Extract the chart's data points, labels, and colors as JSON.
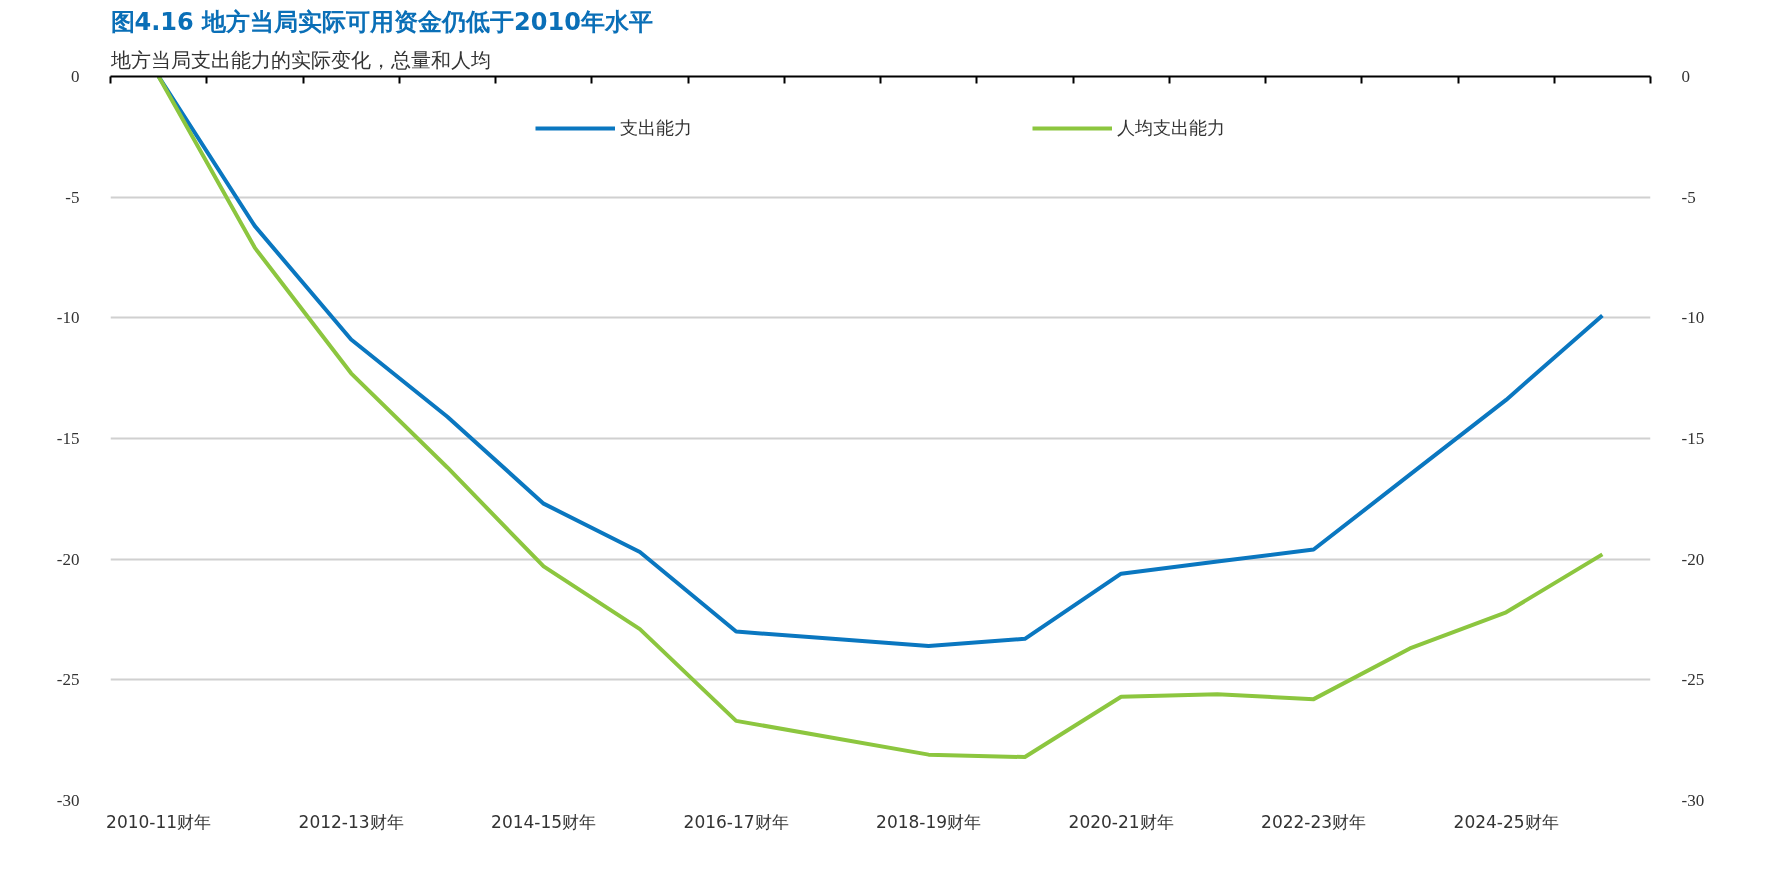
{
  "chart_data": {
    "type": "line",
    "title": "图4.16 地方当局实际可用资金仍低于2010年水平",
    "subtitle": "地方当局支出能力的实际变化，总量和人均",
    "categories": [
      "2010-11财年",
      null,
      "2012-13财年",
      null,
      "2014-15财年",
      null,
      "2016-17财年",
      null,
      "2018-19财年",
      null,
      "2020-21财年",
      null,
      "2022-23财年",
      null,
      "2024-25财年",
      null
    ],
    "series": [
      {
        "name": "支出能力",
        "color": "#0a77c0",
        "values": [
          0,
          -6.2,
          -10.9,
          -14.1,
          -17.7,
          -19.7,
          -23.0,
          -23.3,
          -23.6,
          -23.3,
          -20.6,
          -20.1,
          -19.6,
          -16.5,
          -13.4,
          -9.9
        ]
      },
      {
        "name": "人均支出能力",
        "color": "#8cc63f",
        "values": [
          0,
          -7.1,
          -12.3,
          -16.2,
          -20.3,
          -22.9,
          -26.7,
          -27.4,
          -28.1,
          -28.2,
          -25.7,
          -25.6,
          -25.8,
          -23.7,
          -22.2,
          -19.8
        ]
      }
    ],
    "ylim": [
      -30,
      0
    ],
    "yticks": [
      0,
      -5,
      -10,
      -15,
      -20,
      -25,
      -30
    ],
    "y2lim": [
      -30,
      0
    ],
    "y2ticks": [
      0,
      -5,
      -10,
      -15,
      -20,
      -25,
      -30
    ],
    "grid": "y",
    "legend": "top",
    "marker": "none",
    "line_style": "solid"
  }
}
